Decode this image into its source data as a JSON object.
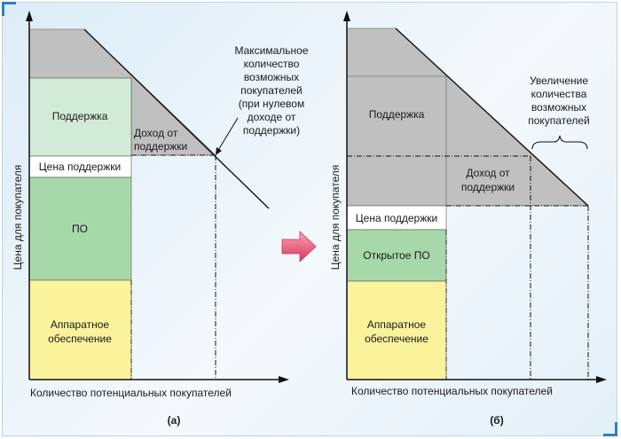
{
  "left": {
    "support": "Поддержка",
    "support_price": "Цена поддержки",
    "software": "ПО",
    "hardware_line1": "Аппаратное",
    "hardware_line2": "обеспечение",
    "support_income_line1": "Доход от",
    "support_income_line2": "поддержки",
    "annotation_lines": [
      "Максимальное",
      "количество",
      "возможных",
      "покупателей",
      "(при нулевом",
      "доходе от",
      "поддержки)"
    ],
    "x_axis_label": "Количество потенциальных покупателей",
    "y_axis_label": "Цена для покупателя",
    "caption": "(а)"
  },
  "right": {
    "support": "Поддержка",
    "support_price": "Цена поддержки",
    "software": "Открытое ПО",
    "hardware_line1": "Аппаратное",
    "hardware_line2": "обеспечение",
    "support_income_line1": "Доход от",
    "support_income_line2": "поддержки",
    "annotation_lines": [
      "Увеличение",
      "количества",
      "возможных",
      "покупателей"
    ],
    "x_axis_label": "Количество потенциальных покупателей",
    "y_axis_label": "Цена для покупателя",
    "caption": "(б)"
  },
  "colors": {
    "support": "#d2ebd9",
    "software": "#a7d8a9",
    "hardware": "#fbf39c",
    "gray": "#c0c0c0",
    "arrow": "#e04b6a"
  }
}
